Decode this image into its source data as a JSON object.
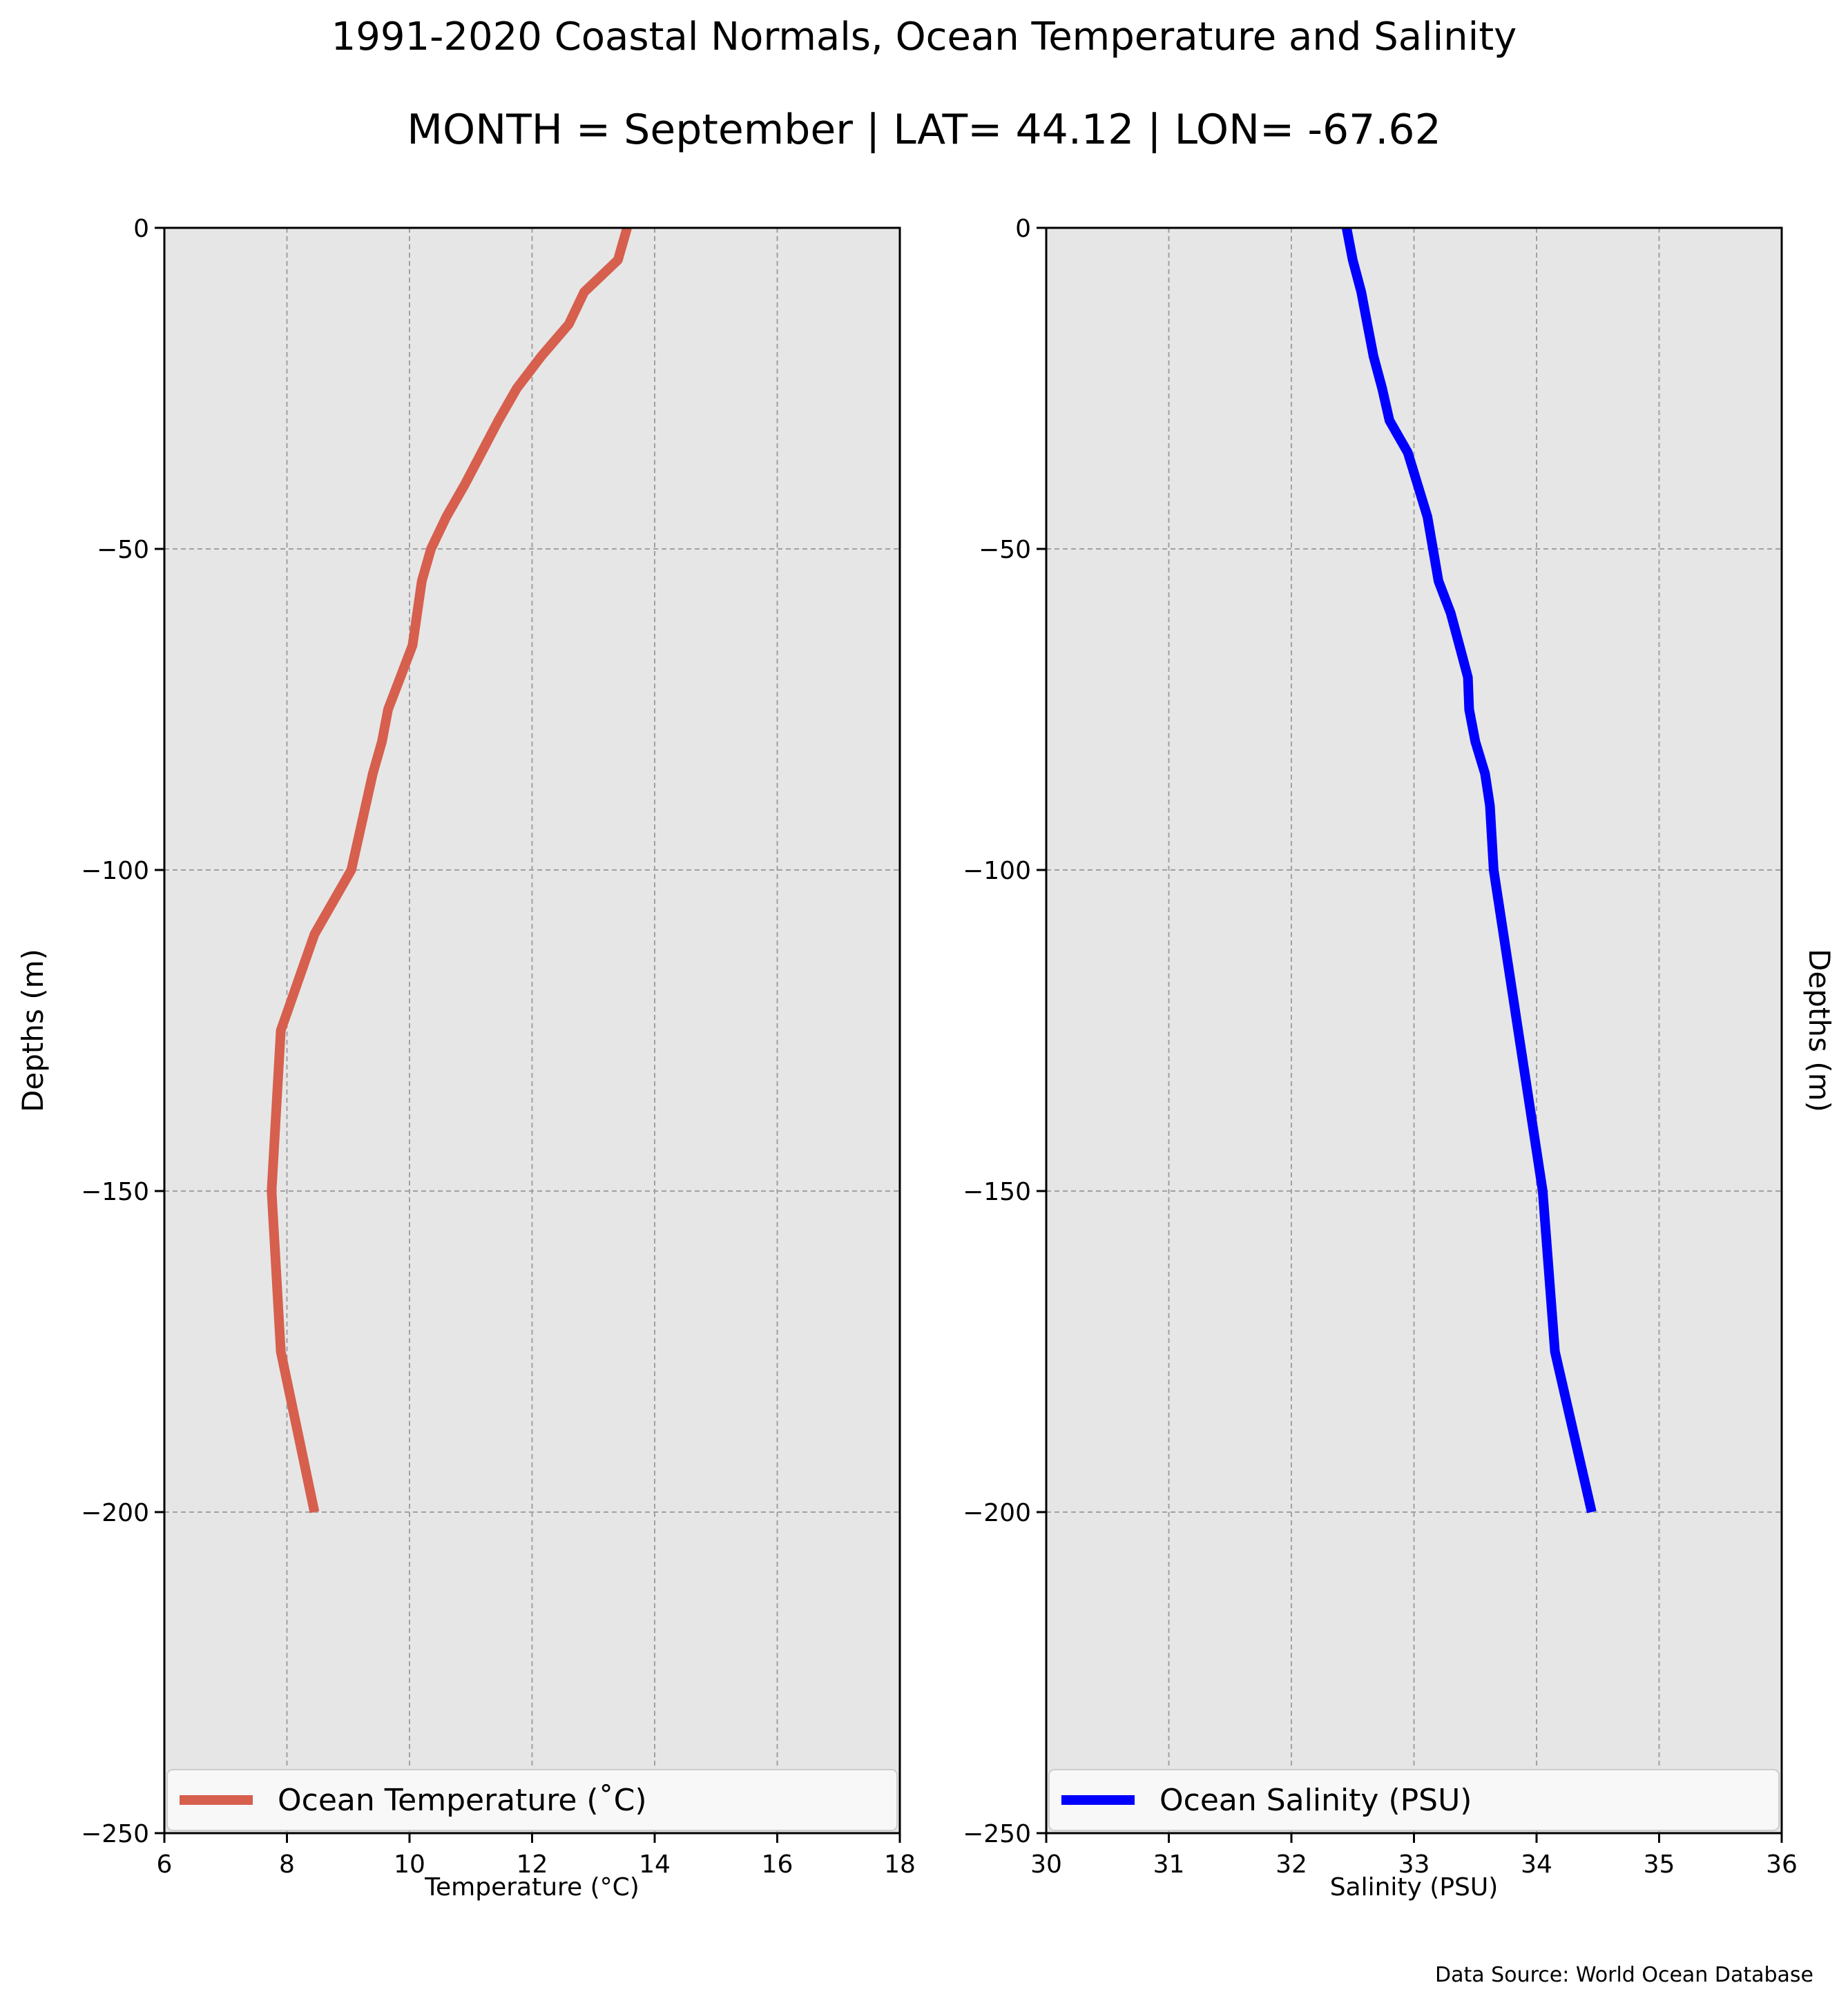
{
  "title": "1991-2020 Coastal Normals, Ocean Temperature and Salinity",
  "subtitle": "MONTH = September | LAT= 44.12 | LON= -67.62",
  "source_note": "Data Source: World Ocean Database",
  "colors": {
    "temperature": "#d65f4e",
    "salinity": "#0000ff",
    "plot_bg": "#e6e6e6",
    "grid": "#a0a0a0"
  },
  "chart_data": [
    {
      "type": "line",
      "xlabel": "Temperature ($^\\circ$C)",
      "xlabel_display": "Temperature (°C)",
      "ylabel": "Depths (m)",
      "xlim": [
        6,
        18
      ],
      "ylim": [
        -250,
        0
      ],
      "xticks": [
        6,
        8,
        10,
        12,
        14,
        16,
        18
      ],
      "xtick_labels": [
        "6",
        "8",
        "10",
        "12",
        "14",
        "16",
        "18"
      ],
      "yticks": [
        0,
        -50,
        -100,
        -150,
        -200,
        -250
      ],
      "ytick_labels": [
        "0",
        "−50",
        "−100",
        "−150",
        "−200",
        "−250"
      ],
      "grid": true,
      "legend_position": "bottom",
      "series": [
        {
          "name": "Ocean Temperature (˚C)",
          "x": [
            13.55,
            13.4,
            12.85,
            12.6,
            12.15,
            11.75,
            11.45,
            10.9,
            10.6,
            10.35,
            10.2,
            10.05,
            9.85,
            9.65,
            9.55,
            9.4,
            9.05,
            8.45,
            7.9,
            7.75,
            7.9,
            8.45
          ],
          "y": [
            0,
            -5,
            -10,
            -15,
            -20,
            -25,
            -30,
            -40,
            -45,
            -50,
            -55,
            -65,
            -70,
            -75,
            -80,
            -85,
            -100,
            -110,
            -125,
            -150,
            -175,
            -200
          ]
        }
      ]
    },
    {
      "type": "line",
      "xlabel": "Salinity (PSU)",
      "ylabel": "Depths (m)",
      "xlim": [
        30,
        36
      ],
      "ylim": [
        -250,
        0
      ],
      "xticks": [
        30,
        31,
        32,
        33,
        34,
        35,
        36
      ],
      "xtick_labels": [
        "30",
        "31",
        "32",
        "33",
        "34",
        "35",
        "36"
      ],
      "yticks": [
        0,
        -50,
        -100,
        -150,
        -200,
        -250
      ],
      "ytick_labels": [
        "0",
        "−50",
        "−100",
        "−150",
        "−200",
        "−250"
      ],
      "grid": true,
      "legend_position": "bottom",
      "series": [
        {
          "name": "Ocean Salinity (PSU)",
          "x": [
            32.45,
            32.5,
            32.57,
            32.62,
            32.67,
            32.74,
            32.8,
            32.95,
            33.03,
            33.11,
            33.2,
            33.3,
            33.37,
            33.44,
            33.45,
            33.5,
            33.58,
            33.62,
            33.65,
            34.05,
            34.15,
            34.45
          ],
          "y": [
            0,
            -5,
            -10,
            -15,
            -20,
            -25,
            -30,
            -35,
            -40,
            -45,
            -55,
            -60,
            -65,
            -70,
            -75,
            -80,
            -85,
            -90,
            -100,
            -150,
            -175,
            -200
          ]
        }
      ]
    }
  ]
}
